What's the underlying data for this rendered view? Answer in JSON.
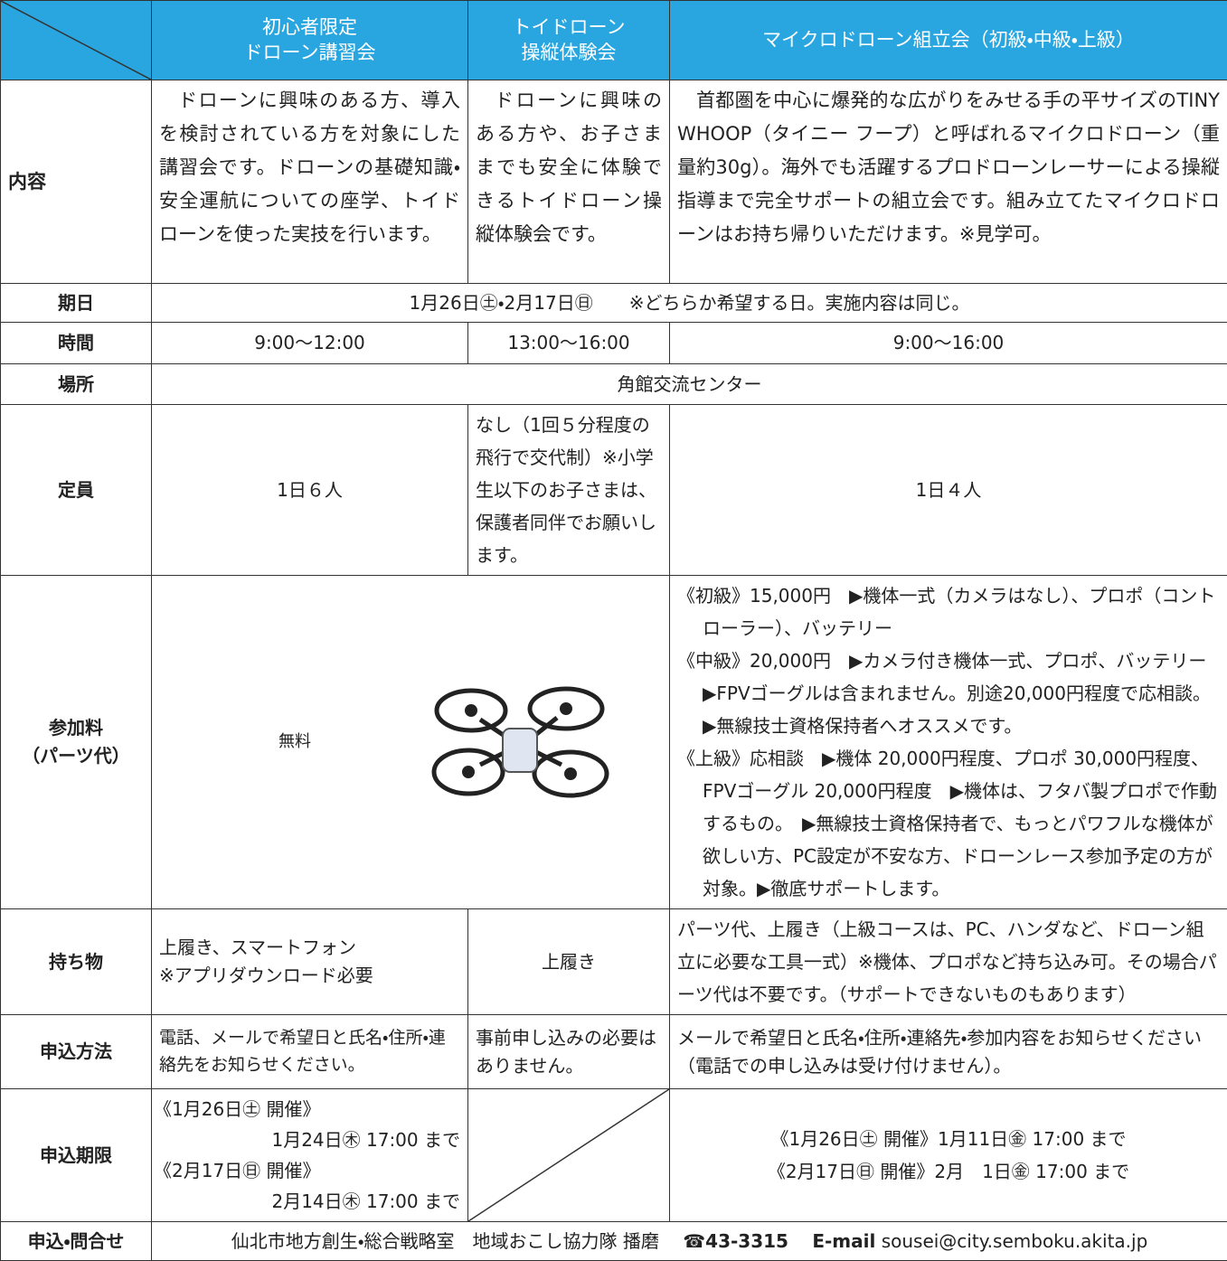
{
  "table": {
    "header": [
      [
        "初心者限定",
        "ドローン講習会"
      ],
      [
        "トイドローン",
        "操縦体験会"
      ],
      [
        "マイクロドローン組立会（初級・中級・上級）"
      ]
    ],
    "content": {
      "label": "内容",
      "cells": [
        "ドローンに興味のある方、導入を検討されている方を対象にした講習会です。ドローンの基礎知識・安全運航についての座学、トイドローンを使った実技を行います。",
        "ドローンに興味のある方や、お子さままでも安全に体験できるトイドローン操縦体験会です。",
        "首都圏を中心に爆発的な広がりをみせる手の平サイズのTINY WHOOP（タイニー フープ）と呼ばれるマイクロドローン（重量約30g）。海外でも活躍するプロドローンレーサーによる操縦指導まで完全サポートの組立会です。組み立てたマイクロドローンはお持ち帰りいただけます。※見学可。"
      ]
    },
    "date": {
      "label": "期日",
      "text": "1月26日㊏・2月17日㊐　　※どちらか希望する日。実施内容は同じ。"
    },
    "time": {
      "label": "時間",
      "cells": [
        "9:00～12:00",
        "13:00～16:00",
        "9:00～16:00"
      ]
    },
    "place": {
      "label": "場所",
      "text": "角館交流センター"
    },
    "capacity": {
      "label": "定員",
      "cells": [
        "1日６人",
        "なし（1回５分程度の飛行で交代制）※小学生以下のお子さまは、保護者同伴でお願いします。",
        "1日４人"
      ]
    },
    "fee": {
      "label": [
        "参加料",
        "（パーツ代）"
      ],
      "free": "無料",
      "items": [
        "《初級》15,000円　▶機体一式（カメラはなし）、プロポ（コントローラー）、バッテリー",
        "《中級》20,000円　▶カメラ付き機体一式、プロポ、バッテリー　▶FPVゴーグルは含まれません。別途20,000円程度で応相談。　▶無線技士資格保持者へオススメです。",
        "《上級》応相談　▶機体 20,000円程度、プロポ 30,000円程度、FPVゴーグル 20,000円程度　▶機体は、フタバ製プロポで作動するもの。　▶無線技士資格保持者で、もっとパワフルな機体が欲しい方、PC設定が不安な方、ドローンレース参加予定の方が対象。▶徹底サポートします。"
      ]
    },
    "belongings": {
      "label": "持ち物",
      "cells": [
        [
          "上履き、スマートフォン",
          "※アプリダウンロード必要"
        ],
        [
          "上履き"
        ],
        [
          "パーツ代、上履き（上級コースは、PC、ハンダなど、ドローン組立に必要な工具一式）※機体、プロポなど持ち込み可。その場合パーツ代は不要です。（サポートできないものもあります）"
        ]
      ]
    },
    "method": {
      "label": "申込方法",
      "cells": [
        "電話、メールで希望日と氏名・住所・連絡先をお知らせください。",
        "事前申し込みの必要はありません。",
        "メールで希望日と氏名・住所・連絡先・参加内容をお知らせください（電話での申し込みは受け付けません）。"
      ]
    },
    "deadline": {
      "label": "申込期限",
      "left": [
        "《1月26日㊏ 開催》",
        "1月24日㊍ 17:00 まで",
        "《2月17日㊐ 開催》",
        "2月14日㊍ 17:00 まで"
      ],
      "right": [
        "《1月26日㊏ 開催》1月11日㊎ 17:00 まで",
        "《2月17日㊐ 開催》2月　1日㊎ 17:00 まで"
      ]
    },
    "contact": {
      "label": "申込・問合せ",
      "office": "仙北市地方創生・総合戦略室　地域おこし協力隊 播磨",
      "phone": "☎43-3315",
      "email_label": "E-mail",
      "email": "sousei@city.semboku.akita.jp"
    }
  }
}
